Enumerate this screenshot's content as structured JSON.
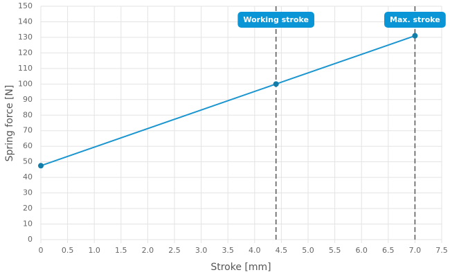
{
  "chart_data": {
    "type": "line",
    "x_label": "Stroke [mm]",
    "y_label": "Spring force [N]",
    "x": [
      0,
      4.4,
      7.0
    ],
    "series": [
      {
        "color": "#1a95cf",
        "values": [
          47.5,
          100,
          131
        ]
      }
    ],
    "xlim": [
      0,
      7.5
    ],
    "xticks": [
      0,
      0.5,
      {
        "value": 1,
        "label": "1.0"
      },
      1.5,
      {
        "value": 2,
        "label": "2.0"
      },
      2.5,
      {
        "value": 3,
        "label": "3.0"
      },
      3.5,
      {
        "value": 4,
        "label": "4.0"
      },
      4.5,
      {
        "value": 5,
        "label": "5.0"
      },
      5.5,
      {
        "value": 6,
        "label": "6.0"
      },
      6.5,
      {
        "value": 7,
        "label": "7.0"
      },
      7.5
    ],
    "ylim": [
      0,
      150
    ],
    "yticks": [
      0,
      10,
      20,
      30,
      40,
      50,
      60,
      70,
      80,
      90,
      100,
      110,
      120,
      130,
      140,
      150
    ],
    "grid": true,
    "annotations": [
      {
        "x": 4.4,
        "label": "Working stroke",
        "color": "#0a96d6"
      },
      {
        "x": 7.0,
        "label": "Max. stroke",
        "color": "#0a96d6"
      }
    ]
  }
}
